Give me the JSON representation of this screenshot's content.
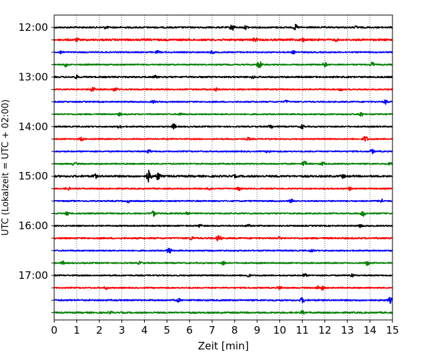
{
  "chart_data": {
    "type": "line",
    "title": "",
    "xlabel": "Zeit  [min]",
    "ylabel": "UTC (Lokalzeit = UTC + 02:00)",
    "xlim": [
      0,
      15
    ],
    "x_ticks": [
      "0",
      "1",
      "2",
      "3",
      "4",
      "5",
      "6",
      "7",
      "8",
      "9",
      "10",
      "11",
      "12",
      "13",
      "14",
      "15"
    ],
    "y_tick_labels": [
      "12:00",
      "13:00",
      "14:00",
      "15:00",
      "16:00",
      "17:00"
    ],
    "grid": "vertical dotted lines at each minute",
    "legend": "none",
    "trace_colors": [
      "#000000",
      "#ff0000",
      "#0000ff",
      "#008000"
    ],
    "rows": [
      {
        "time": "12:00",
        "color": "#000000",
        "amplitude": 0.12,
        "events": [
          {
            "t": 2.3,
            "a": 0.3
          },
          {
            "t": 7.9,
            "a": 0.6
          },
          {
            "t": 8.5,
            "a": 0.35
          },
          {
            "t": 10.7,
            "a": 0.5
          },
          {
            "t": 13.4,
            "a": 0.3
          }
        ]
      },
      {
        "time": "12:15",
        "color": "#ff0000",
        "amplitude": 0.15,
        "events": [
          {
            "t": 1.0,
            "a": 0.35
          },
          {
            "t": 8.9,
            "a": 0.4
          },
          {
            "t": 11.0,
            "a": 0.45
          },
          {
            "t": 12.5,
            "a": 0.3
          }
        ]
      },
      {
        "time": "12:30",
        "color": "#0000ff",
        "amplitude": 0.1,
        "events": [
          {
            "t": 0.3,
            "a": 0.35
          },
          {
            "t": 4.6,
            "a": 0.3
          },
          {
            "t": 7.0,
            "a": 0.3
          },
          {
            "t": 10.6,
            "a": 0.3
          }
        ]
      },
      {
        "time": "12:45",
        "color": "#008000",
        "amplitude": 0.1,
        "events": [
          {
            "t": 0.5,
            "a": 0.4
          },
          {
            "t": 9.1,
            "a": 0.65
          },
          {
            "t": 12.0,
            "a": 0.4
          },
          {
            "t": 14.1,
            "a": 0.45
          }
        ]
      },
      {
        "time": "13:00",
        "color": "#000000",
        "amplitude": 0.12,
        "events": [
          {
            "t": 1.0,
            "a": 0.35
          },
          {
            "t": 4.5,
            "a": 0.3
          },
          {
            "t": 8.8,
            "a": 0.3
          }
        ]
      },
      {
        "time": "13:15",
        "color": "#ff0000",
        "amplitude": 0.1,
        "events": [
          {
            "t": 1.7,
            "a": 0.5
          },
          {
            "t": 2.7,
            "a": 0.4
          },
          {
            "t": 7.2,
            "a": 0.3
          },
          {
            "t": 12.7,
            "a": 0.3
          }
        ]
      },
      {
        "time": "13:30",
        "color": "#0000ff",
        "amplitude": 0.1,
        "events": [
          {
            "t": 4.4,
            "a": 0.3
          },
          {
            "t": 10.3,
            "a": 0.3
          },
          {
            "t": 14.7,
            "a": 0.4
          }
        ]
      },
      {
        "time": "13:45",
        "color": "#008000",
        "amplitude": 0.1,
        "events": [
          {
            "t": 2.9,
            "a": 0.3
          },
          {
            "t": 5.6,
            "a": 0.3
          },
          {
            "t": 13.6,
            "a": 0.45
          }
        ]
      },
      {
        "time": "14:00",
        "color": "#000000",
        "amplitude": 0.1,
        "events": [
          {
            "t": 2.9,
            "a": 0.3
          },
          {
            "t": 5.3,
            "a": 0.5
          },
          {
            "t": 9.6,
            "a": 0.4
          },
          {
            "t": 11.0,
            "a": 0.4
          }
        ]
      },
      {
        "time": "14:15",
        "color": "#ff0000",
        "amplitude": 0.1,
        "events": [
          {
            "t": 1.2,
            "a": 0.35
          },
          {
            "t": 8.6,
            "a": 0.3
          },
          {
            "t": 13.8,
            "a": 0.55
          }
        ]
      },
      {
        "time": "14:30",
        "color": "#0000ff",
        "amplitude": 0.1,
        "events": [
          {
            "t": 4.2,
            "a": 0.35
          },
          {
            "t": 9.5,
            "a": 0.3
          },
          {
            "t": 14.1,
            "a": 0.4
          }
        ]
      },
      {
        "time": "14:45",
        "color": "#008000",
        "amplitude": 0.1,
        "events": [
          {
            "t": 0.9,
            "a": 0.3
          },
          {
            "t": 11.1,
            "a": 0.5
          },
          {
            "t": 11.9,
            "a": 0.35
          },
          {
            "t": 14.9,
            "a": 0.35
          }
        ]
      },
      {
        "time": "15:00",
        "color": "#000000",
        "amplitude": 0.15,
        "events": [
          {
            "t": 1.8,
            "a": 0.45
          },
          {
            "t": 4.2,
            "a": 1.0
          },
          {
            "t": 4.6,
            "a": 0.7
          },
          {
            "t": 8.0,
            "a": 0.3
          },
          {
            "t": 12.8,
            "a": 0.4
          }
        ]
      },
      {
        "time": "15:15",
        "color": "#ff0000",
        "amplitude": 0.1,
        "events": [
          {
            "t": 0.6,
            "a": 0.35
          },
          {
            "t": 6.9,
            "a": 0.35
          },
          {
            "t": 8.2,
            "a": 0.35
          },
          {
            "t": 13.1,
            "a": 0.35
          }
        ]
      },
      {
        "time": "15:30",
        "color": "#0000ff",
        "amplitude": 0.1,
        "events": [
          {
            "t": 3.3,
            "a": 0.3
          },
          {
            "t": 10.5,
            "a": 0.35
          },
          {
            "t": 14.5,
            "a": 0.4
          }
        ]
      },
      {
        "time": "15:45",
        "color": "#008000",
        "amplitude": 0.1,
        "events": [
          {
            "t": 0.6,
            "a": 0.4
          },
          {
            "t": 4.4,
            "a": 0.5
          },
          {
            "t": 5.9,
            "a": 0.4
          },
          {
            "t": 13.7,
            "a": 0.5
          }
        ]
      },
      {
        "time": "16:00",
        "color": "#000000",
        "amplitude": 0.1,
        "events": [
          {
            "t": 6.5,
            "a": 0.35
          },
          {
            "t": 8.6,
            "a": 0.35
          },
          {
            "t": 13.6,
            "a": 0.35
          }
        ]
      },
      {
        "time": "16:15",
        "color": "#ff0000",
        "amplitude": 0.12,
        "events": [
          {
            "t": 6.1,
            "a": 0.35
          },
          {
            "t": 7.3,
            "a": 0.6
          },
          {
            "t": 10.0,
            "a": 0.3
          }
        ]
      },
      {
        "time": "16:30",
        "color": "#0000ff",
        "amplitude": 0.1,
        "events": [
          {
            "t": 5.1,
            "a": 0.55
          },
          {
            "t": 11.4,
            "a": 0.3
          }
        ]
      },
      {
        "time": "16:45",
        "color": "#008000",
        "amplitude": 0.1,
        "events": [
          {
            "t": 0.4,
            "a": 0.35
          },
          {
            "t": 3.8,
            "a": 0.3
          },
          {
            "t": 7.5,
            "a": 0.35
          },
          {
            "t": 13.9,
            "a": 0.45
          }
        ]
      },
      {
        "time": "17:00",
        "color": "#000000",
        "amplitude": 0.1,
        "events": [
          {
            "t": 8.6,
            "a": 0.35
          },
          {
            "t": 11.1,
            "a": 0.35
          },
          {
            "t": 13.2,
            "a": 0.35
          }
        ]
      },
      {
        "time": "17:15",
        "color": "#ff0000",
        "amplitude": 0.1,
        "events": [
          {
            "t": 2.3,
            "a": 0.3
          },
          {
            "t": 10.0,
            "a": 0.35
          },
          {
            "t": 11.7,
            "a": 0.35
          },
          {
            "t": 11.9,
            "a": 0.4
          }
        ]
      },
      {
        "time": "17:30",
        "color": "#0000ff",
        "amplitude": 0.12,
        "events": [
          {
            "t": 5.5,
            "a": 0.35
          },
          {
            "t": 11.0,
            "a": 0.5
          },
          {
            "t": 14.9,
            "a": 0.5
          }
        ]
      },
      {
        "time": "17:45",
        "color": "#008000",
        "amplitude": 0.12,
        "events": [
          {
            "t": 2.5,
            "a": 0.3
          },
          {
            "t": 11.0,
            "a": 0.35
          }
        ]
      }
    ]
  }
}
